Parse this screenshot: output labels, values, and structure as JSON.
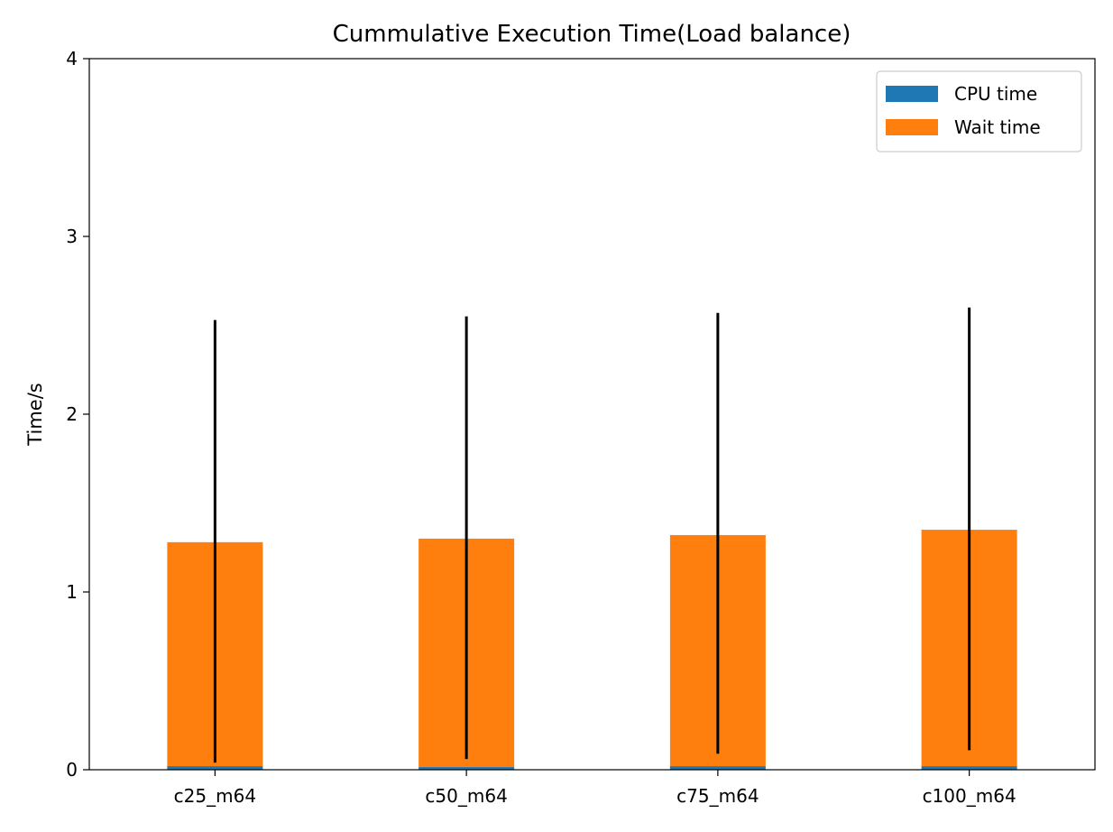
{
  "chart_data": {
    "type": "bar",
    "stacked": true,
    "title": "Cummulative Execution Time(Load balance)",
    "xlabel": "",
    "ylabel": "Time/s",
    "ylim": [
      0,
      4
    ],
    "yticks": [
      "0",
      "1",
      "2",
      "3",
      "4"
    ],
    "categories": [
      "c25_m64",
      "c50_m64",
      "c75_m64",
      "c100_m64"
    ],
    "series": [
      {
        "name": "CPU time",
        "color": "#1f77b4",
        "values": [
          0.02,
          0.015,
          0.02,
          0.02
        ]
      },
      {
        "name": "Wait time",
        "color": "#ff7f0e",
        "values": [
          1.26,
          1.285,
          1.3,
          1.33
        ]
      }
    ],
    "error_bars": [
      {
        "low": 0.04,
        "high": 2.53
      },
      {
        "low": 0.06,
        "high": 2.55
      },
      {
        "low": 0.09,
        "high": 2.57
      },
      {
        "low": 0.11,
        "high": 2.6
      }
    ],
    "error_bar_color": "#000000",
    "legend": {
      "placement": "top-right"
    },
    "grid": false
  }
}
